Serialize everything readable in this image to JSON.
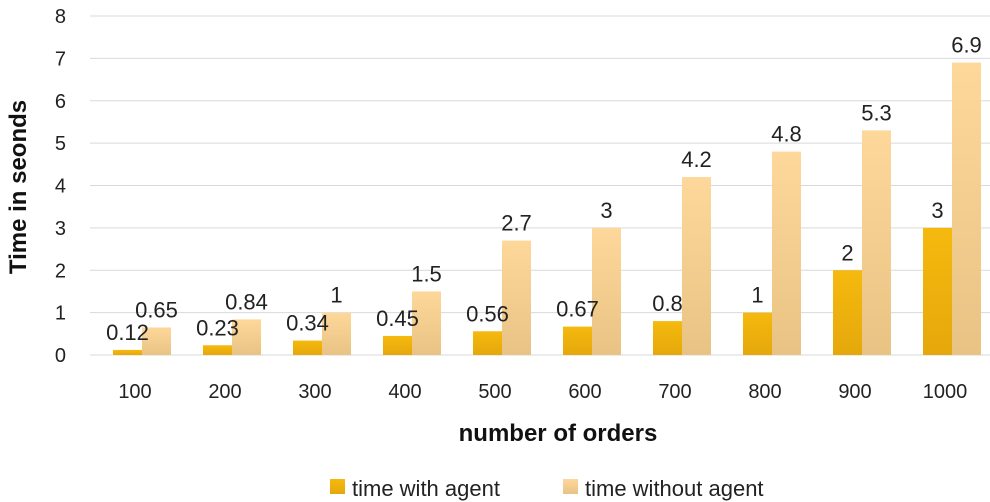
{
  "chart_data": {
    "type": "bar",
    "title": "",
    "xlabel": "number of orders",
    "ylabel": "Time in seonds",
    "categories": [
      "100",
      "200",
      "300",
      "400",
      "500",
      "600",
      "700",
      "800",
      "900",
      "1000"
    ],
    "series": [
      {
        "name": "time with agent",
        "values": [
          0.12,
          0.23,
          0.34,
          0.45,
          0.56,
          0.67,
          0.8,
          1,
          2,
          3
        ],
        "color_top": "#f5b90e",
        "color_bottom": "#e5a80c"
      },
      {
        "name": "time without agent",
        "values": [
          0.65,
          0.84,
          1,
          1.5,
          2.7,
          3,
          4.2,
          4.8,
          5.3,
          6.9
        ],
        "color_top": "#fdd89a",
        "color_bottom": "#e8c384"
      }
    ],
    "ylim": [
      0,
      8
    ],
    "yticks": [
      0,
      1,
      2,
      3,
      4,
      5,
      6,
      7,
      8
    ],
    "grid": true,
    "legend_position": "bottom-center"
  }
}
